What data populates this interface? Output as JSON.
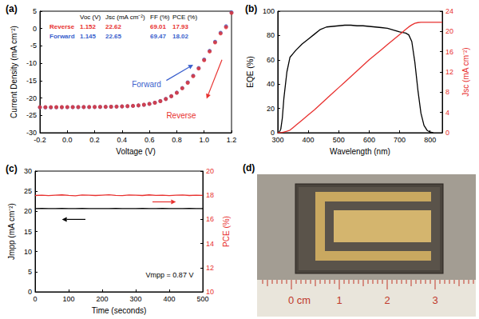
{
  "chart_data": [
    {
      "panel": "(a)",
      "type": "scatter",
      "xlabel": "Voltage (V)",
      "ylabel": "Current Density (mA cm⁻²)",
      "xlim": [
        -0.2,
        1.2
      ],
      "xticks": [
        -0.2,
        {
          "value": 0,
          "label": "0.0"
        },
        0.2,
        0.4,
        0.6,
        0.8,
        {
          "value": 1,
          "label": "1.0"
        },
        1.2
      ],
      "ylim": [
        -30,
        5
      ],
      "yticks": [
        -30,
        -25,
        -20,
        -15,
        -10,
        -5,
        0,
        5
      ],
      "x": [
        -0.2,
        -0.16,
        -0.12,
        -0.08,
        -0.04,
        0,
        0.04,
        0.08,
        0.12,
        0.16,
        0.2,
        0.24,
        0.28,
        0.32,
        0.36,
        0.4,
        0.44,
        0.48,
        0.52,
        0.56,
        0.6,
        0.64,
        0.68,
        0.72,
        0.76,
        0.8,
        0.84,
        0.88,
        0.92,
        0.96,
        1.0,
        1.04,
        1.08,
        1.12,
        1.16,
        1.2
      ],
      "series": [
        {
          "name": "Forward",
          "color": "#3a5fcd",
          "marker": "circle",
          "values": [
            -22.69,
            -22.68,
            -22.68,
            -22.67,
            -22.66,
            -22.65,
            -22.64,
            -22.63,
            -22.62,
            -22.61,
            -22.6,
            -22.58,
            -22.55,
            -22.52,
            -22.48,
            -22.43,
            -22.36,
            -22.27,
            -22.14,
            -21.96,
            -21.7,
            -21.35,
            -20.88,
            -20.27,
            -19.46,
            -18.44,
            -17.12,
            -15.5,
            -13.58,
            -11.36,
            -8.94,
            -6.42,
            -3.8,
            -1.2,
            0.65,
            4.7
          ]
        },
        {
          "name": "Reverse",
          "color": "#e8312f",
          "marker": "circle",
          "values": [
            -22.66,
            -22.65,
            -22.65,
            -22.64,
            -22.63,
            -22.62,
            -22.62,
            -22.61,
            -22.6,
            -22.59,
            -22.58,
            -22.56,
            -22.54,
            -22.51,
            -22.47,
            -22.42,
            -22.35,
            -22.26,
            -22.13,
            -21.95,
            -21.7,
            -21.36,
            -20.9,
            -20.3,
            -19.5,
            -18.5,
            -17.2,
            -15.6,
            -13.7,
            -11.5,
            -9.1,
            -6.6,
            -4.0,
            -1.4,
            0.4,
            4.5
          ]
        }
      ],
      "table": {
        "columns": [
          "Voc (V)",
          "Jsc (mA cm⁻²)",
          "FF (%)",
          "PCE (%)"
        ],
        "rows": [
          {
            "label": "Reverse",
            "color": "#e8312f",
            "values": [
              1.152,
              22.62,
              69.01,
              17.93
            ]
          },
          {
            "label": "Forward",
            "color": "#3a5fcd",
            "values": [
              1.145,
              22.65,
              69.47,
              18.02
            ]
          }
        ]
      }
    },
    {
      "panel": "(b)",
      "type": "line",
      "xlabel": "Wavelength (nm)",
      "ylabel": "EQE (%)",
      "y2label": "Jsc (mA cm⁻²)",
      "xlim": [
        300,
        840
      ],
      "xticks": [
        300,
        400,
        500,
        600,
        700,
        800
      ],
      "ylim": [
        0,
        100
      ],
      "yticks": [
        0,
        20,
        40,
        60,
        80,
        100
      ],
      "y2lim": [
        0,
        24
      ],
      "y2ticks": [
        0,
        4,
        8,
        12,
        16,
        20,
        24
      ],
      "x": [
        300,
        305,
        310,
        315,
        320,
        330,
        340,
        350,
        360,
        380,
        400,
        420,
        440,
        460,
        480,
        500,
        520,
        540,
        560,
        580,
        600,
        620,
        640,
        660,
        680,
        700,
        720,
        730,
        740,
        750,
        760,
        770,
        780,
        790,
        800,
        810,
        820,
        830,
        840
      ],
      "series": [
        {
          "color": "#000000",
          "values": [
            0,
            0.5,
            3,
            12,
            28,
            50,
            62,
            65,
            68,
            73,
            77,
            81,
            85,
            87,
            87.5,
            88,
            88.5,
            88.5,
            88,
            88,
            87.5,
            87,
            86.5,
            86,
            84.5,
            83,
            82,
            80.5,
            75,
            58,
            35,
            16,
            6,
            2,
            0.5,
            0,
            null,
            null,
            null
          ]
        },
        {
          "color": "#e8312f",
          "axis": "y2",
          "values": [
            0,
            0,
            0.02,
            0.06,
            0.12,
            0.28,
            0.5,
            1.0,
            1.5,
            2.5,
            3.5,
            4.5,
            5.6,
            6.7,
            7.8,
            8.9,
            10.0,
            11.1,
            12.2,
            13.3,
            14.4,
            15.4,
            16.4,
            17.4,
            18.4,
            19.4,
            20.4,
            20.9,
            21.3,
            21.6,
            21.75,
            21.8,
            21.8,
            21.8,
            21.8,
            21.8,
            21.8,
            21.8,
            21.8
          ]
        }
      ]
    },
    {
      "panel": "(c)",
      "type": "line",
      "xlabel": "Time (seconds)",
      "ylabel": "Jmpp (mA cm⁻²)",
      "y2label": "PCE (%)",
      "annotation": "Vmpp = 0.87 V",
      "xlim": [
        0,
        500
      ],
      "xticks": [
        0,
        100,
        200,
        300,
        400,
        500
      ],
      "ylim": [
        0,
        30
      ],
      "yticks": [
        0,
        5,
        10,
        15,
        20,
        25,
        30
      ],
      "y2lim": [
        10,
        20
      ],
      "y2ticks": [
        10,
        12,
        14,
        16,
        18,
        20
      ],
      "x": [
        0,
        20,
        40,
        60,
        80,
        100,
        120,
        140,
        160,
        180,
        200,
        220,
        240,
        260,
        280,
        300,
        320,
        340,
        360,
        380,
        400,
        420,
        440,
        460,
        480,
        500
      ],
      "series": [
        {
          "color": "#000000",
          "values": [
            20.7,
            20.71,
            20.69,
            20.7,
            20.72,
            20.7,
            20.69,
            20.71,
            20.7,
            20.7,
            20.68,
            20.7,
            20.71,
            20.69,
            20.7,
            20.7,
            20.72,
            20.69,
            20.7,
            20.71,
            20.7,
            20.69,
            20.7,
            20.71,
            20.7,
            20.69
          ]
        },
        {
          "color": "#e8312f",
          "axis": "y2",
          "values": [
            17.98,
            18.01,
            17.97,
            18.0,
            18.03,
            17.99,
            17.96,
            18.02,
            18.0,
            17.98,
            18.01,
            18.04,
            17.99,
            17.97,
            18.02,
            18.0,
            17.98,
            18.03,
            17.99,
            18.01,
            17.97,
            18.0,
            18.02,
            17.98,
            18.01,
            17.99
          ]
        }
      ]
    }
  ],
  "photo": {
    "panel": "(d)",
    "ruler_labels": [
      "0 cm",
      "1",
      "2",
      "3"
    ]
  }
}
